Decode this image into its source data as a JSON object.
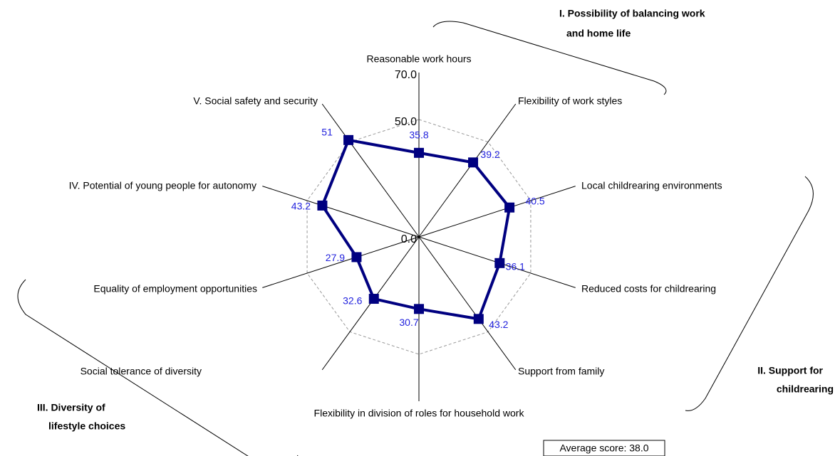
{
  "chart_data": {
    "type": "radar",
    "categories": [
      "Reasonable work hours",
      "Flexibility of work styles",
      "Local childrearing environments",
      "Reduced costs for childrearing",
      "Support from family",
      "Flexibility in division of roles for household work",
      "Social tolerance of diversity",
      "Equality of employment opportunities",
      "IV. Potential of young people for autonomy",
      "V. Social safety and security"
    ],
    "values": [
      35.8,
      39.2,
      40.5,
      36.1,
      43.2,
      30.7,
      32.6,
      27.9,
      43.2,
      51.0
    ],
    "color": "#000080",
    "value_label_color": "#2222dd",
    "ylim": [
      0,
      70
    ],
    "yticks": [
      {
        "value": 0,
        "label": "0.0"
      },
      {
        "value": 50,
        "label": "50.0"
      },
      {
        "value": 70,
        "label": "70.0"
      }
    ],
    "grid": true,
    "groups": [
      [
        "I. Possibility of balancing work",
        "and home life"
      ],
      [
        "II. Support for",
        "childrearing"
      ],
      [
        "III. Diversity of",
        "lifestyle choices"
      ]
    ],
    "annotation": "Average score: 38.0"
  }
}
